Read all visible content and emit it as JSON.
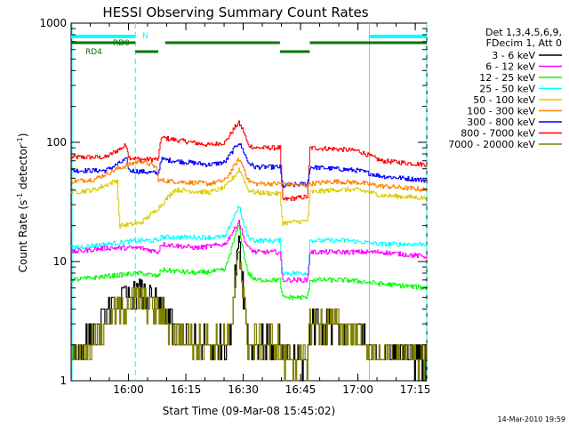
{
  "chart_data": {
    "type": "line",
    "title": "HESSI Observing Summary Count Rates",
    "xlabel": "Start Time (09-Mar-08 15:45:02)",
    "ylabel_main": "Count Rate (s",
    "ylabel_sup1": "-1",
    "ylabel_mid": " detector",
    "ylabel_sup2": "-1",
    "ylabel_end": ")",
    "yscale": "log",
    "ylim": [
      1,
      1000
    ],
    "xlim": [
      15.75,
      17.3
    ],
    "x_ticks": [
      {
        "v": 16.0,
        "label": "16:00"
      },
      {
        "v": 16.25,
        "label": "16:15"
      },
      {
        "v": 16.5,
        "label": "16:30"
      },
      {
        "v": 16.75,
        "label": "16:45"
      },
      {
        "v": 17.0,
        "label": "17:00"
      },
      {
        "v": 17.25,
        "label": "17:15"
      }
    ],
    "y_ticks": [
      {
        "v": 1,
        "label": "1"
      },
      {
        "v": 10,
        "label": "10"
      },
      {
        "v": 100,
        "label": "100"
      },
      {
        "v": 1000,
        "label": "1000"
      }
    ],
    "legend": {
      "position": "right",
      "header1": "Det 1,3,4,5,6,9,",
      "header2": "FDecim 1, Att 0",
      "entries": [
        {
          "label": "3 - 6 keV",
          "color": "#000000"
        },
        {
          "label": "6 - 12 keV",
          "color": "#ff00ff"
        },
        {
          "label": "12 - 25 keV",
          "color": "#00ff00"
        },
        {
          "label": "25 - 50 keV",
          "color": "#00ffff"
        },
        {
          "label": "50 - 100 keV",
          "color": "#d8cc00"
        },
        {
          "label": "100 - 300 keV",
          "color": "#ff8000"
        },
        {
          "label": "300 - 800 keV",
          "color": "#0000ff"
        },
        {
          "label": "800 - 7000 keV",
          "color": "#ff0000"
        },
        {
          "label": "7000 - 20000 keV",
          "color": "#808000"
        }
      ]
    },
    "flags": [
      {
        "label": "N",
        "color": "#00ffff",
        "segments": [
          [
            15.75,
            16.03
          ],
          [
            17.05,
            17.3
          ]
        ]
      },
      {
        "label": "RD0",
        "color": "#007700",
        "segments": [
          [
            15.75,
            16.03
          ],
          [
            16.16,
            16.66
          ],
          [
            16.79,
            17.3
          ]
        ]
      },
      {
        "label": "RD4",
        "color": "#007700",
        "segments": [
          [
            16.03,
            16.13
          ],
          [
            16.66,
            16.79
          ]
        ]
      }
    ],
    "vlines": [
      {
        "x": 16.03,
        "style": "dashed"
      },
      {
        "x": 17.05,
        "style": "solid"
      },
      {
        "x": 17.3,
        "style": "dashed"
      }
    ],
    "series": [
      {
        "name": "800 - 7000 keV",
        "color": "#ff0000",
        "x": [
          15.75,
          15.9,
          15.99,
          16.0,
          16.05,
          16.13,
          16.14,
          16.2,
          16.35,
          16.42,
          16.47,
          16.48,
          16.5,
          16.52,
          16.55,
          16.66,
          16.67,
          16.78,
          16.79,
          16.9,
          17.0,
          17.1,
          17.3
        ],
        "y": [
          75,
          75,
          95,
          75,
          72,
          72,
          110,
          105,
          95,
          100,
          140,
          145,
          125,
          95,
          90,
          90,
          33,
          35,
          90,
          88,
          85,
          70,
          65
        ]
      },
      {
        "name": "300 - 800 keV",
        "color": "#0000ff",
        "x": [
          15.75,
          15.9,
          15.99,
          16.0,
          16.05,
          16.13,
          16.14,
          16.2,
          16.35,
          16.42,
          16.47,
          16.48,
          16.5,
          16.52,
          16.55,
          16.66,
          16.67,
          16.78,
          16.79,
          16.9,
          17.0,
          17.1,
          17.3
        ],
        "y": [
          58,
          58,
          72,
          58,
          57,
          55,
          72,
          70,
          65,
          68,
          95,
          100,
          85,
          68,
          62,
          62,
          43,
          45,
          62,
          60,
          58,
          52,
          48
        ]
      },
      {
        "name": "100 - 300 keV",
        "color": "#ff8000",
        "x": [
          15.75,
          15.85,
          15.95,
          16.05,
          16.12,
          16.13,
          16.2,
          16.35,
          16.42,
          16.47,
          16.48,
          16.5,
          16.52,
          16.55,
          16.66,
          16.67,
          16.78,
          16.79,
          16.9,
          17.0,
          17.1,
          17.3
        ],
        "y": [
          47,
          49,
          60,
          70,
          62,
          48,
          47,
          45,
          48,
          68,
          72,
          62,
          48,
          45,
          45,
          45,
          43,
          45,
          47,
          46,
          43,
          40
        ]
      },
      {
        "name": "50 - 100 keV",
        "color": "#d8cc00",
        "x": [
          15.75,
          15.85,
          15.95,
          15.96,
          16.05,
          16.12,
          16.2,
          16.35,
          16.42,
          16.47,
          16.48,
          16.5,
          16.52,
          16.55,
          16.66,
          16.67,
          16.78,
          16.79,
          16.9,
          17.0,
          17.1,
          17.3
        ],
        "y": [
          38,
          40,
          48,
          20,
          21,
          27,
          40,
          38,
          42,
          55,
          60,
          50,
          40,
          38,
          37,
          21,
          22,
          38,
          40,
          40,
          36,
          34
        ]
      },
      {
        "name": "25 - 50 keV",
        "color": "#00ffff",
        "x": [
          15.75,
          15.9,
          16.05,
          16.13,
          16.14,
          16.3,
          16.42,
          16.47,
          16.48,
          16.5,
          16.52,
          16.55,
          16.66,
          16.67,
          16.78,
          16.79,
          16.95,
          17.1,
          17.3
        ],
        "y": [
          13,
          14,
          15,
          15,
          16,
          16,
          16,
          27,
          29,
          21,
          16,
          15,
          15,
          8,
          8,
          15,
          15,
          14,
          14
        ]
      },
      {
        "name": "6 - 12 keV",
        "color": "#ff00ff",
        "x": [
          15.75,
          15.9,
          16.05,
          16.13,
          16.14,
          16.3,
          16.42,
          16.47,
          16.48,
          16.5,
          16.52,
          16.55,
          16.66,
          16.67,
          16.78,
          16.79,
          16.95,
          17.1,
          17.3
        ],
        "y": [
          12,
          13,
          13,
          12,
          14,
          13,
          14,
          20,
          22,
          16,
          13,
          12,
          12,
          7,
          7,
          12,
          12,
          12,
          11
        ]
      },
      {
        "name": "12 - 25 keV",
        "color": "#00ff00",
        "x": [
          15.75,
          15.9,
          16.05,
          16.13,
          16.14,
          16.3,
          16.42,
          16.47,
          16.48,
          16.5,
          16.52,
          16.55,
          16.66,
          16.67,
          16.78,
          16.79,
          16.95,
          17.1,
          17.3
        ],
        "y": [
          7,
          7.5,
          8,
          7.5,
          8.5,
          8,
          8.5,
          18,
          20,
          12,
          8,
          7,
          7,
          5,
          5,
          7,
          7,
          6.5,
          6
        ]
      },
      {
        "name": "3 - 6 keV",
        "color": "#000000",
        "x": [
          15.75,
          15.85,
          15.95,
          16.05,
          16.15,
          16.2,
          16.3,
          16.4,
          16.45,
          16.47,
          16.48,
          16.5,
          16.52,
          16.55,
          16.66,
          16.67,
          16.78,
          16.79,
          16.9,
          17.0,
          17.05,
          17.3
        ],
        "y": [
          1.5,
          2.5,
          4.5,
          5.5,
          4,
          2.5,
          2,
          2,
          2.5,
          12,
          17,
          6,
          2,
          2,
          2,
          1.5,
          1.5,
          3,
          3,
          2.5,
          1.8,
          1.5
        ]
      },
      {
        "name": "7000 - 20000 keV",
        "color": "#808000",
        "x": [
          15.75,
          15.85,
          15.95,
          16.05,
          16.15,
          16.2,
          16.3,
          16.4,
          16.45,
          16.47,
          16.48,
          16.5,
          16.52,
          16.55,
          16.66,
          16.67,
          16.78,
          16.79,
          16.9,
          17.0,
          17.05,
          17.3
        ],
        "y": [
          1.5,
          2.2,
          4,
          5,
          3.5,
          2.5,
          2,
          2,
          2.5,
          10,
          14,
          5,
          2,
          2,
          2,
          1.5,
          1.5,
          3,
          3,
          2.5,
          1.7,
          1.5
        ]
      }
    ]
  },
  "footer": {
    "timestamp": "14-Mar-2010 19:59"
  }
}
